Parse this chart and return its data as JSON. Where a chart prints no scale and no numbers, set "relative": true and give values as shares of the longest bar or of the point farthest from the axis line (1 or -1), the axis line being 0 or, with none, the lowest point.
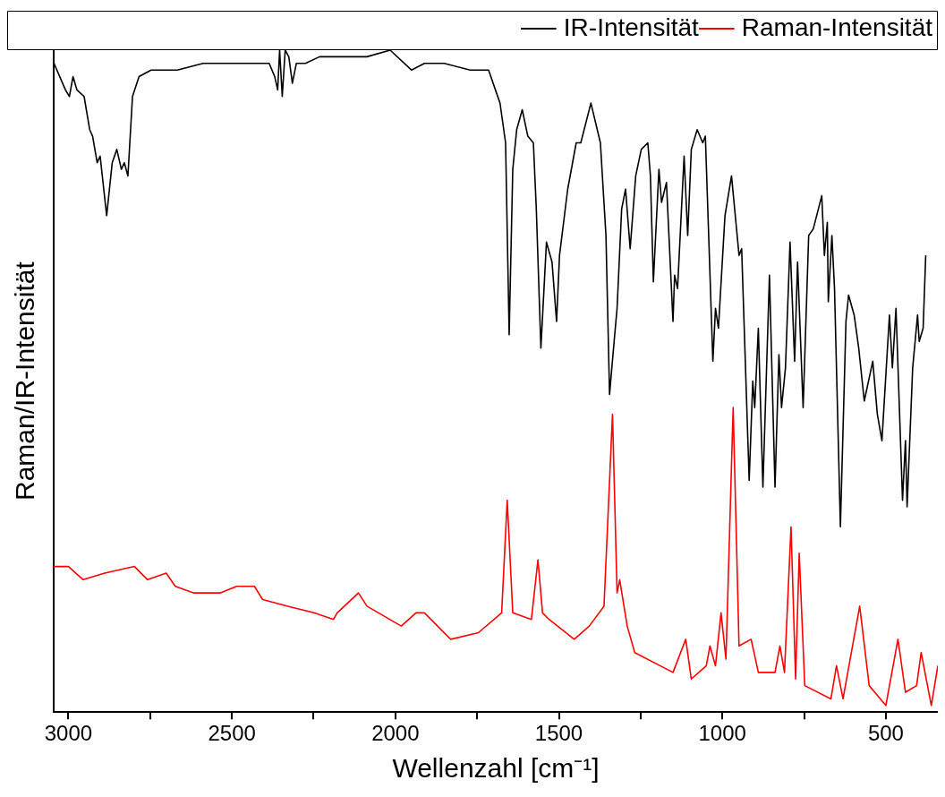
{
  "chart_data": {
    "type": "line",
    "xlabel": "Wellenzahl [cm⁻¹]",
    "ylabel": "Raman/IR-Intensität",
    "relative": true,
    "xlim": [
      3045,
      341
    ],
    "xticks": [
      3000,
      {
        "value": 2750,
        "label": null
      },
      2500,
      {
        "value": 2250,
        "label": null
      },
      2000,
      {
        "value": 1750,
        "label": null
      },
      1500,
      {
        "value": 1250,
        "label": null
      },
      1000,
      {
        "value": 750,
        "label": null
      },
      500
    ],
    "grid": false,
    "legend": "top right",
    "marker": "none",
    "line_style": "solid",
    "series": [
      {
        "name": "IR-Intensität",
        "color": "#000000",
        "x": [
          3044,
          3009,
          2997,
          2986,
          2974,
          2952,
          2935,
          2926,
          2912,
          2903,
          2883,
          2866,
          2852,
          2838,
          2829,
          2818,
          2804,
          2784,
          2747,
          2667,
          2588,
          2511,
          2386,
          2369,
          2360,
          2354,
          2346,
          2337,
          2326,
          2315,
          2303,
          2275,
          2232,
          2198,
          2150,
          2087,
          2016,
          1951,
          1911,
          1851,
          1771,
          1726,
          1715,
          1680,
          1663,
          1652,
          1641,
          1629,
          1612,
          1595,
          1578,
          1569,
          1555,
          1538,
          1521,
          1507,
          1498,
          1473,
          1447,
          1433,
          1402,
          1373,
          1356,
          1345,
          1331,
          1322,
          1308,
          1296,
          1282,
          1265,
          1248,
          1228,
          1220,
          1211,
          1194,
          1186,
          1171,
          1151,
          1146,
          1137,
          1117,
          1106,
          1095,
          1077,
          1060,
          1052,
          1029,
          1021,
          1012,
          992,
          972,
          949,
          941,
          918,
          907,
          901,
          890,
          876,
          856,
          839,
          827,
          819,
          807,
          793,
          779,
          770,
          753,
          736,
          722,
          696,
          688,
          679,
          676,
          665,
          657,
          639,
          622,
          614,
          597,
          583,
          566,
          540,
          526,
          512,
          489,
          480,
          469,
          449,
          440,
          435,
          418,
          403,
          398,
          386,
          378
        ],
        "values": [
          0.98,
          0.94,
          0.93,
          0.96,
          0.94,
          0.93,
          0.88,
          0.87,
          0.83,
          0.84,
          0.75,
          0.83,
          0.85,
          0.82,
          0.83,
          0.81,
          0.93,
          0.96,
          0.97,
          0.97,
          0.98,
          0.98,
          0.98,
          0.96,
          0.94,
          1,
          0.93,
          1,
          0.99,
          0.95,
          0.98,
          0.98,
          0.99,
          0.99,
          0.99,
          0.99,
          1,
          0.97,
          0.98,
          0.98,
          0.97,
          0.97,
          0.97,
          0.92,
          0.86,
          0.57,
          0.82,
          0.88,
          0.91,
          0.87,
          0.86,
          0.76,
          0.55,
          0.71,
          0.68,
          0.59,
          0.69,
          0.79,
          0.86,
          0.86,
          0.92,
          0.86,
          0.72,
          0.48,
          0.56,
          0.61,
          0.76,
          0.79,
          0.7,
          0.81,
          0.85,
          0.86,
          0.81,
          0.65,
          0.82,
          0.77,
          0.8,
          0.59,
          0.66,
          0.64,
          0.84,
          0.72,
          0.85,
          0.88,
          0.86,
          0.87,
          0.53,
          0.61,
          0.58,
          0.75,
          0.81,
          0.69,
          0.7,
          0.35,
          0.5,
          0.46,
          0.58,
          0.34,
          0.66,
          0.34,
          0.54,
          0.46,
          0.52,
          0.71,
          0.53,
          0.68,
          0.46,
          0.72,
          0.73,
          0.78,
          0.69,
          0.74,
          0.62,
          0.72,
          0.64,
          0.28,
          0.59,
          0.63,
          0.6,
          0.55,
          0.47,
          0.53,
          0.45,
          0.41,
          0.6,
          0.52,
          0.61,
          0.32,
          0.41,
          0.31,
          0.52,
          0.6,
          0.56,
          0.58,
          0.69
        ]
      },
      {
        "name": "Raman-Intensität",
        "color": "#ff0000",
        "x": [
          3045,
          3000,
          2955,
          2889,
          2798,
          2758,
          2701,
          2673,
          2616,
          2536,
          2485,
          2431,
          2406,
          2329,
          2249,
          2189,
          2178,
          2113,
          2087,
          1982,
          1937,
          1911,
          1831,
          1746,
          1675,
          1658,
          1641,
          1584,
          1564,
          1550,
          1530,
          1453,
          1407,
          1362,
          1336,
          1322,
          1314,
          1291,
          1268,
          1151,
          1112,
          1095,
          1049,
          1038,
          1021,
          1004,
          989,
          967,
          949,
          912,
          890,
          839,
          824,
          810,
          790,
          776,
          765,
          748,
          668,
          651,
          631,
          580,
          551,
          500,
          463,
          440,
          406,
          392,
          361,
          341
        ],
        "values": [
          0.22,
          0.22,
          0.2,
          0.21,
          0.22,
          0.2,
          0.21,
          0.19,
          0.18,
          0.18,
          0.19,
          0.19,
          0.17,
          0.16,
          0.15,
          0.14,
          0.15,
          0.18,
          0.16,
          0.13,
          0.15,
          0.15,
          0.11,
          0.12,
          0.15,
          0.32,
          0.15,
          0.14,
          0.23,
          0.15,
          0.14,
          0.11,
          0.13,
          0.16,
          0.45,
          0.18,
          0.2,
          0.13,
          0.09,
          0.06,
          0.11,
          0.05,
          0.07,
          0.1,
          0.07,
          0.15,
          0.08,
          0.46,
          0.1,
          0.11,
          0.06,
          0.06,
          0.1,
          0.06,
          0.28,
          0.05,
          0.24,
          0.04,
          0.02,
          0.07,
          0.02,
          0.16,
          0.04,
          0.01,
          0.11,
          0.03,
          0.04,
          0.09,
          0.01,
          0.07
        ]
      }
    ]
  }
}
